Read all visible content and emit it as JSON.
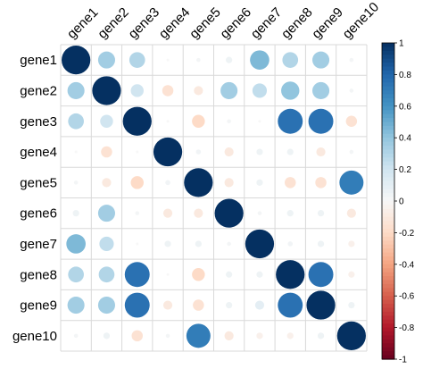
{
  "chart_data": {
    "type": "heatmap",
    "variant": "correlation-circles",
    "title": "",
    "row_labels": [
      "gene1",
      "gene2",
      "gene3",
      "gene4",
      "gene5",
      "gene6",
      "gene7",
      "gene8",
      "gene9",
      "gene10"
    ],
    "col_labels": [
      "gene1",
      "gene2",
      "gene3",
      "gene4",
      "gene5",
      "gene6",
      "gene7",
      "gene8",
      "gene9",
      "gene10"
    ],
    "matrix": [
      [
        1.0,
        0.35,
        0.3,
        0.0,
        0.02,
        0.05,
        0.45,
        0.3,
        0.35,
        0.02
      ],
      [
        0.35,
        1.0,
        0.2,
        -0.15,
        -0.1,
        0.35,
        0.25,
        0.4,
        0.35,
        0.02
      ],
      [
        0.3,
        0.2,
        1.0,
        0.0,
        -0.2,
        0.02,
        0.0,
        0.75,
        0.75,
        -0.15
      ],
      [
        0.0,
        -0.15,
        0.0,
        1.0,
        0.03,
        -0.1,
        0.05,
        0.05,
        -0.1,
        0.02
      ],
      [
        0.02,
        -0.1,
        -0.2,
        0.03,
        1.0,
        -0.1,
        0.05,
        -0.15,
        -0.15,
        0.7
      ],
      [
        0.05,
        0.35,
        0.02,
        -0.1,
        -0.1,
        1.0,
        0.02,
        0.05,
        0.05,
        -0.1
      ],
      [
        0.45,
        0.25,
        0.0,
        0.05,
        0.05,
        0.02,
        1.0,
        0.03,
        0.05,
        -0.05
      ],
      [
        0.3,
        0.3,
        0.75,
        0.0,
        -0.2,
        0.05,
        0.05,
        1.0,
        0.75,
        -0.05
      ],
      [
        0.35,
        0.35,
        0.75,
        -0.1,
        -0.15,
        0.05,
        0.1,
        0.75,
        1.0,
        0.05
      ],
      [
        0.02,
        0.05,
        -0.15,
        0.02,
        0.7,
        -0.1,
        -0.05,
        -0.05,
        0.05,
        1.0
      ]
    ],
    "colorbar": {
      "ticks": [
        "1",
        "0.8",
        "0.6",
        "0.4",
        "0.2",
        "0",
        "-0.2",
        "-0.4",
        "-0.6",
        "-0.8",
        "-1"
      ],
      "range": [
        -1,
        1
      ]
    },
    "colors": {
      "positive_strong": "#053061",
      "positive_mid": "#4393c3",
      "neutral": "#f7f7f7",
      "negative_mid": "#f4a582",
      "negative_strong": "#67001f",
      "grid": "#d9d9d9"
    }
  }
}
